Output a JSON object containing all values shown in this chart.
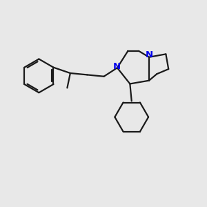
{
  "bg_color": "#e8e8e8",
  "bond_color": "#1a1a1a",
  "nitrogen_color": "#0000ee",
  "line_width": 1.6,
  "figsize": [
    3.0,
    3.0
  ],
  "dpi": 100,
  "xlim": [
    0,
    10
  ],
  "ylim": [
    0,
    10
  ]
}
